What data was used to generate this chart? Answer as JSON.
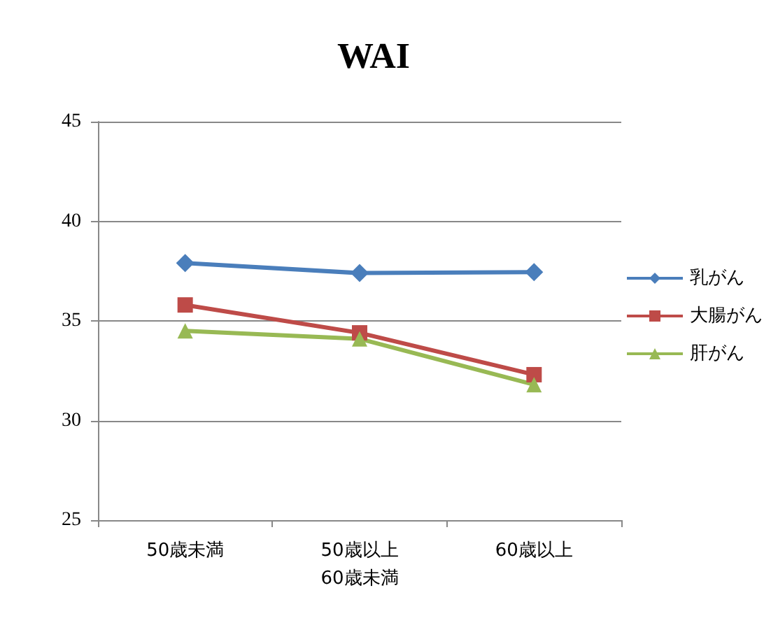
{
  "chart_data": {
    "type": "line",
    "title": "WAI",
    "categories": [
      "50歳未満",
      "50歳以上\n60歳未満",
      "60歳以上"
    ],
    "series": [
      {
        "name": "乳がん",
        "color": "#4a7ebb",
        "marker": "diamond",
        "values": [
          37.9,
          37.4,
          37.45
        ]
      },
      {
        "name": "大腸がん",
        "color": "#be4b48",
        "marker": "square",
        "values": [
          35.8,
          34.4,
          32.3
        ]
      },
      {
        "name": "肝がん",
        "color": "#98b954",
        "marker": "triangle",
        "values": [
          34.5,
          34.1,
          31.8
        ]
      }
    ],
    "ylim": [
      25,
      45
    ],
    "yticks": [
      25,
      30,
      35,
      40,
      45
    ],
    "grid": "y",
    "legend": "right"
  }
}
